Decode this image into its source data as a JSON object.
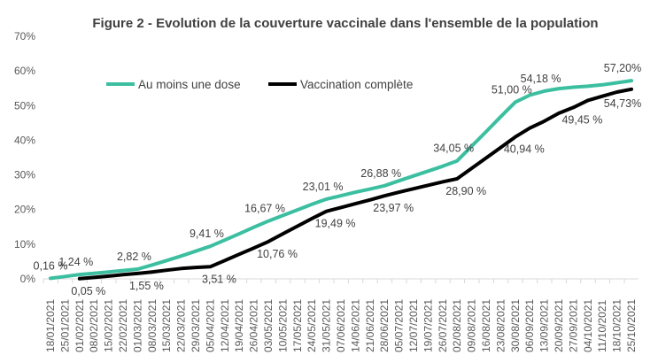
{
  "chart_data": {
    "type": "line",
    "title": "Figure 2 - Evolution de la couverture vaccinale dans l'ensemble de la population",
    "xlabel": "",
    "ylabel": "",
    "ylim": [
      0,
      70
    ],
    "yticks": [
      "0%",
      "10%",
      "20%",
      "30%",
      "40%",
      "50%",
      "60%",
      "70%"
    ],
    "grid": false,
    "legend_position": "top-left",
    "categories": [
      "18/01/2021",
      "25/01/2021",
      "01/02/2021",
      "08/02/2021",
      "15/02/2021",
      "22/02/2021",
      "01/03/2021",
      "08/03/2021",
      "15/03/2021",
      "22/03/2021",
      "29/03/2021",
      "05/04/2021",
      "12/04/2021",
      "19/04/2021",
      "26/04/2021",
      "03/05/2021",
      "10/05/2021",
      "17/05/2021",
      "24/05/2021",
      "31/05/2021",
      "07/06/2021",
      "14/06/2021",
      "21/06/2021",
      "28/06/2021",
      "05/07/2021",
      "12/07/2021",
      "19/07/2021",
      "26/07/2021",
      "02/08/2021",
      "09/08/2021",
      "16/08/2021",
      "23/08/2021",
      "30/08/2021",
      "06/09/2021",
      "13/09/2021",
      "20/09/2021",
      "27/09/2021",
      "04/10/2021",
      "11/10/2021",
      "18/10/2021",
      "25/10/2021"
    ],
    "series": [
      {
        "name": "Au moins une dose",
        "color": "#3CBFA0",
        "values": [
          0.16,
          0.7,
          1.24,
          1.6,
          2.0,
          2.4,
          2.82,
          4.0,
          5.3,
          6.6,
          8.0,
          9.41,
          11.2,
          13.0,
          14.9,
          16.67,
          18.3,
          19.9,
          21.5,
          23.01,
          24.0,
          25.0,
          25.9,
          26.88,
          28.3,
          29.7,
          31.1,
          32.5,
          34.05,
          38.3,
          42.5,
          46.8,
          51.0,
          53.0,
          54.18,
          54.9,
          55.3,
          55.6,
          56.0,
          56.6,
          57.2
        ],
        "labels": [
          {
            "i": 0,
            "text": "0,16 %"
          },
          {
            "i": 2,
            "text": "1,24 %"
          },
          {
            "i": 6,
            "text": "2,82 %"
          },
          {
            "i": 11,
            "text": "9,41 %"
          },
          {
            "i": 15,
            "text": "16,67 %"
          },
          {
            "i": 19,
            "text": "23,01 %"
          },
          {
            "i": 23,
            "text": "26,88 %"
          },
          {
            "i": 28,
            "text": "34,05 %"
          },
          {
            "i": 32,
            "text": "51,00 %"
          },
          {
            "i": 34,
            "text": "54,18 %"
          },
          {
            "i": 40,
            "text": "57,20%"
          }
        ]
      },
      {
        "name": "Vaccination complète",
        "color": "#000000",
        "values": [
          null,
          null,
          0.05,
          0.4,
          0.8,
          1.2,
          1.55,
          2.0,
          2.5,
          3.0,
          3.3,
          3.51,
          5.3,
          7.1,
          8.9,
          10.76,
          13.0,
          15.2,
          17.4,
          19.49,
          20.6,
          21.7,
          22.8,
          23.97,
          25.0,
          26.0,
          27.0,
          28.0,
          28.9,
          31.9,
          34.9,
          37.9,
          40.94,
          43.5,
          45.5,
          47.8,
          49.45,
          51.5,
          52.7,
          53.9,
          54.73
        ],
        "labels": [
          {
            "i": 2,
            "text": "0,05 %"
          },
          {
            "i": 6,
            "text": "1,55 %"
          },
          {
            "i": 11,
            "text": "3,51 %"
          },
          {
            "i": 15,
            "text": "10,76 %"
          },
          {
            "i": 19,
            "text": "19,49 %"
          },
          {
            "i": 23,
            "text": "23,97 %"
          },
          {
            "i": 28,
            "text": "28,90 %"
          },
          {
            "i": 32,
            "text": "40,94 %"
          },
          {
            "i": 36,
            "text": "49,45 %"
          },
          {
            "i": 40,
            "text": "54,73%"
          }
        ]
      }
    ]
  }
}
